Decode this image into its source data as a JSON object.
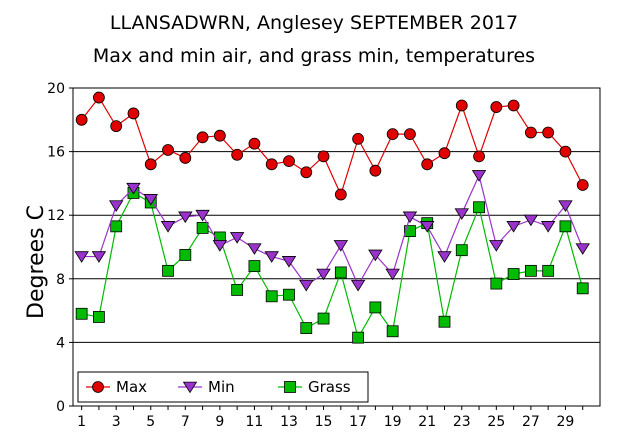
{
  "chart_data": {
    "type": "line",
    "title": "LLANSADWRN, Anglesey SEPTEMBER 2017",
    "subtitle": "Max and min air, and grass min, temperatures",
    "xlabel": "",
    "ylabel": "Degrees C",
    "ylim": [
      0,
      20
    ],
    "xlim": [
      0.5,
      31
    ],
    "y_ticks": [
      0,
      4,
      8,
      12,
      16,
      20
    ],
    "x_ticks": [
      1,
      3,
      5,
      7,
      9,
      11,
      13,
      15,
      17,
      19,
      21,
      23,
      25,
      27,
      29
    ],
    "grid": "horizontal",
    "legend_position": "bottom-left",
    "x": [
      1,
      2,
      3,
      4,
      5,
      6,
      7,
      8,
      9,
      10,
      11,
      12,
      13,
      14,
      15,
      16,
      17,
      18,
      19,
      20,
      21,
      22,
      23,
      24,
      25,
      26,
      27,
      28,
      29,
      30
    ],
    "series": [
      {
        "name": "Max",
        "color": "#e00000",
        "marker": "circle",
        "values": [
          18.0,
          19.4,
          17.6,
          18.4,
          15.2,
          16.1,
          15.6,
          16.9,
          17.0,
          15.8,
          16.5,
          15.2,
          15.4,
          14.7,
          15.7,
          13.3,
          16.8,
          14.8,
          17.1,
          17.1,
          15.2,
          15.9,
          18.9,
          15.7,
          18.8,
          18.9,
          17.2,
          17.2,
          16.0,
          13.9
        ]
      },
      {
        "name": "Min",
        "color": "#9933cc",
        "marker": "triangle-down",
        "values": [
          9.4,
          9.4,
          12.6,
          13.7,
          13.0,
          11.3,
          11.9,
          12.0,
          10.1,
          10.6,
          9.9,
          9.4,
          9.1,
          7.6,
          8.3,
          10.1,
          7.6,
          9.5,
          8.3,
          11.9,
          11.3,
          9.4,
          12.1,
          14.5,
          10.1,
          11.3,
          11.7,
          11.3,
          12.6,
          9.9
        ]
      },
      {
        "name": "Grass",
        "color": "#00bb00",
        "marker": "square",
        "values": [
          5.8,
          5.6,
          11.3,
          13.4,
          12.8,
          8.5,
          9.5,
          11.2,
          10.6,
          7.3,
          8.8,
          6.9,
          7.0,
          4.9,
          5.5,
          8.4,
          4.3,
          6.2,
          4.7,
          11.0,
          11.5,
          5.3,
          9.8,
          12.5,
          7.7,
          8.3,
          8.5,
          8.5,
          11.3,
          7.4
        ]
      }
    ]
  }
}
